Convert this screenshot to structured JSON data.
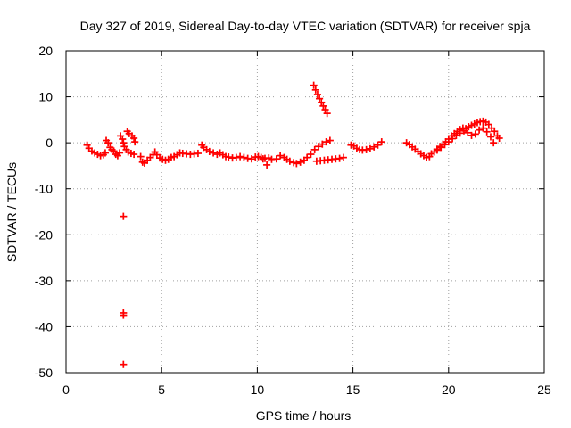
{
  "chart_data": {
    "type": "scatter",
    "title": "Day 327 of 2019, Sidereal Day-to-day VTEC variation (SDTVAR) for receiver spja",
    "xlabel": "GPS time / hours",
    "ylabel": "SDTVAR / TECUs",
    "xlim": [
      0,
      25
    ],
    "ylim": [
      -50,
      20
    ],
    "xticks": [
      0,
      5,
      10,
      15,
      20,
      25
    ],
    "yticks": [
      -50,
      -40,
      -30,
      -20,
      -10,
      0,
      10,
      20
    ],
    "xtick_labels": [
      "0",
      "5",
      "10",
      "15",
      "20",
      "25"
    ],
    "ytick_labels": [
      "-50",
      "-40",
      "-30",
      "-20",
      "-10",
      "0",
      "10",
      "20"
    ],
    "grid": true,
    "marker": "plus",
    "colors": {
      "series": "#ff0000",
      "axis": "#000000",
      "grid": "#a0a0a0"
    },
    "series": [
      {
        "name": "SDTVAR",
        "points": [
          [
            1.1,
            -0.5
          ],
          [
            1.2,
            -1.2
          ],
          [
            1.35,
            -1.8
          ],
          [
            1.5,
            -2.2
          ],
          [
            1.65,
            -2.5
          ],
          [
            1.8,
            -2.8
          ],
          [
            1.95,
            -2.6
          ],
          [
            2.05,
            -2.2
          ],
          [
            2.1,
            0.5
          ],
          [
            2.2,
            0.0
          ],
          [
            2.3,
            -1.0
          ],
          [
            2.4,
            -1.5
          ],
          [
            2.5,
            -1.8
          ],
          [
            2.6,
            -2.5
          ],
          [
            2.7,
            -2.8
          ],
          [
            2.8,
            -2.2
          ],
          [
            2.85,
            1.5
          ],
          [
            2.95,
            0.8
          ],
          [
            3.0,
            0.0
          ],
          [
            3.05,
            -0.8
          ],
          [
            3.15,
            -1.5
          ],
          [
            3.25,
            -2.0
          ],
          [
            3.4,
            -2.3
          ],
          [
            3.55,
            -2.5
          ],
          [
            3.2,
            2.5
          ],
          [
            3.3,
            2.0
          ],
          [
            3.45,
            1.5
          ],
          [
            3.55,
            1.0
          ],
          [
            3.6,
            0.2
          ],
          [
            3.0,
            -16.0
          ],
          [
            3.0,
            -37.5
          ],
          [
            3.0,
            -37.0
          ],
          [
            3.0,
            -48.2
          ],
          [
            3.9,
            -3.0
          ],
          [
            4.0,
            -4.2
          ],
          [
            4.1,
            -4.4
          ],
          [
            4.25,
            -3.8
          ],
          [
            4.4,
            -3.2
          ],
          [
            4.55,
            -2.6
          ],
          [
            4.65,
            -2.0
          ],
          [
            4.75,
            -2.6
          ],
          [
            4.9,
            -3.3
          ],
          [
            5.05,
            -3.6
          ],
          [
            5.2,
            -3.8
          ],
          [
            5.35,
            -3.6
          ],
          [
            5.5,
            -3.2
          ],
          [
            5.65,
            -3.0
          ],
          [
            5.8,
            -2.6
          ],
          [
            5.95,
            -2.2
          ],
          [
            6.1,
            -2.3
          ],
          [
            6.3,
            -2.4
          ],
          [
            6.5,
            -2.5
          ],
          [
            6.7,
            -2.4
          ],
          [
            6.9,
            -2.3
          ],
          [
            7.1,
            -0.5
          ],
          [
            7.2,
            -1.0
          ],
          [
            7.35,
            -1.5
          ],
          [
            7.5,
            -1.9
          ],
          [
            7.7,
            -2.2
          ],
          [
            7.9,
            -2.5
          ],
          [
            8.05,
            -2.2
          ],
          [
            8.2,
            -2.6
          ],
          [
            8.35,
            -3.0
          ],
          [
            8.5,
            -3.1
          ],
          [
            8.7,
            -3.3
          ],
          [
            8.9,
            -3.2
          ],
          [
            9.1,
            -3.0
          ],
          [
            9.3,
            -3.2
          ],
          [
            9.5,
            -3.4
          ],
          [
            9.7,
            -3.5
          ],
          [
            9.9,
            -3.1
          ],
          [
            10.05,
            -3.0
          ],
          [
            10.2,
            -3.2
          ],
          [
            10.3,
            -3.5
          ],
          [
            10.4,
            -3.4
          ],
          [
            10.5,
            -4.8
          ],
          [
            10.6,
            -3.3
          ],
          [
            10.75,
            -3.6
          ],
          [
            11.0,
            -3.5
          ],
          [
            11.2,
            -2.8
          ],
          [
            11.4,
            -3.2
          ],
          [
            11.55,
            -3.6
          ],
          [
            11.7,
            -4.0
          ],
          [
            11.9,
            -4.3
          ],
          [
            12.05,
            -4.5
          ],
          [
            12.25,
            -4.2
          ],
          [
            12.45,
            -3.8
          ],
          [
            12.6,
            -3.2
          ],
          [
            12.8,
            -2.5
          ],
          [
            13.0,
            -1.5
          ],
          [
            13.2,
            -0.8
          ],
          [
            13.4,
            -0.3
          ],
          [
            13.6,
            0.2
          ],
          [
            13.8,
            0.5
          ],
          [
            13.1,
            -4.0
          ],
          [
            13.3,
            -3.9
          ],
          [
            13.5,
            -3.8
          ],
          [
            13.7,
            -3.7
          ],
          [
            13.9,
            -3.6
          ],
          [
            14.1,
            -3.5
          ],
          [
            14.3,
            -3.4
          ],
          [
            14.5,
            -3.2
          ],
          [
            12.95,
            12.5
          ],
          [
            13.05,
            11.5
          ],
          [
            13.15,
            10.5
          ],
          [
            13.25,
            9.6
          ],
          [
            13.35,
            8.8
          ],
          [
            13.45,
            8.0
          ],
          [
            13.55,
            7.2
          ],
          [
            13.65,
            6.4
          ],
          [
            14.9,
            -0.5
          ],
          [
            15.05,
            -0.7
          ],
          [
            15.2,
            -1.2
          ],
          [
            15.35,
            -1.5
          ],
          [
            15.5,
            -1.6
          ],
          [
            15.7,
            -1.5
          ],
          [
            15.9,
            -1.3
          ],
          [
            16.1,
            -0.9
          ],
          [
            16.3,
            -0.5
          ],
          [
            16.5,
            0.2
          ],
          [
            17.8,
            0.0
          ],
          [
            17.95,
            -0.4
          ],
          [
            18.1,
            -0.9
          ],
          [
            18.25,
            -1.4
          ],
          [
            18.4,
            -1.9
          ],
          [
            18.55,
            -2.4
          ],
          [
            18.7,
            -2.8
          ],
          [
            18.85,
            -3.2
          ],
          [
            19.0,
            -3.0
          ],
          [
            19.1,
            -2.4
          ],
          [
            19.25,
            -2.0
          ],
          [
            19.4,
            -1.4
          ],
          [
            19.55,
            -0.8
          ],
          [
            19.7,
            -0.3
          ],
          [
            19.85,
            0.2
          ],
          [
            20.0,
            0.8
          ],
          [
            20.15,
            1.5
          ],
          [
            20.3,
            2.0
          ],
          [
            20.45,
            2.5
          ],
          [
            20.6,
            2.9
          ],
          [
            20.75,
            3.2
          ],
          [
            20.9,
            3.1
          ],
          [
            21.05,
            3.5
          ],
          [
            21.2,
            3.8
          ],
          [
            21.35,
            4.1
          ],
          [
            21.5,
            4.4
          ],
          [
            21.65,
            4.6
          ],
          [
            21.8,
            4.7
          ],
          [
            21.95,
            4.5
          ],
          [
            22.1,
            4.0
          ],
          [
            22.25,
            3.2
          ],
          [
            22.4,
            2.5
          ],
          [
            22.55,
            1.5
          ],
          [
            22.65,
            1.0
          ],
          [
            19.4,
            -1.6
          ],
          [
            19.6,
            -1.0
          ],
          [
            19.8,
            -0.4
          ],
          [
            20.0,
            0.2
          ],
          [
            20.2,
            0.9
          ],
          [
            20.4,
            1.6
          ],
          [
            20.6,
            2.1
          ],
          [
            20.8,
            2.6
          ],
          [
            21.0,
            2.2
          ],
          [
            21.2,
            1.6
          ],
          [
            21.4,
            1.9
          ],
          [
            21.6,
            2.8
          ],
          [
            21.8,
            3.2
          ],
          [
            22.0,
            2.4
          ],
          [
            22.2,
            1.3
          ],
          [
            22.35,
            0.0
          ]
        ]
      }
    ]
  }
}
